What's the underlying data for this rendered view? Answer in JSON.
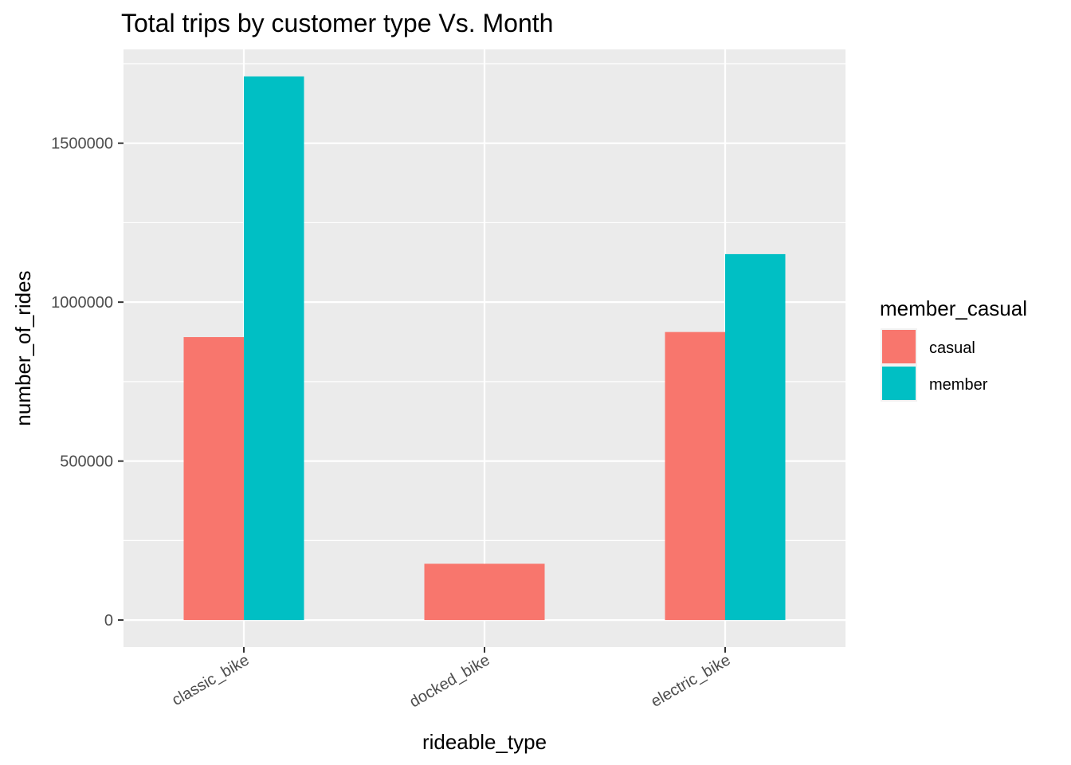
{
  "chart_data": {
    "type": "bar",
    "title": "Total trips by customer type Vs. Month",
    "xlabel": "rideable_type",
    "ylabel": "number_of_rides",
    "categories": [
      "classic_bike",
      "docked_bike",
      "electric_bike"
    ],
    "series": [
      {
        "name": "casual",
        "color": "#F8766D",
        "values": [
          890000,
          177000,
          906000
        ]
      },
      {
        "name": "member",
        "color": "#00BFC4",
        "values": [
          1710000,
          null,
          1151000
        ]
      }
    ],
    "yticks": [
      0,
      500000,
      1000000,
      1500000
    ],
    "ytick_labels": [
      "0",
      "500000",
      "1000000",
      "1500000"
    ],
    "ylim": [
      -85000,
      1795000
    ],
    "legend": {
      "title": "member_casual",
      "position": "right"
    },
    "grid": true,
    "panel_background": "#EBEBEB",
    "grid_color": "#FFFFFF"
  }
}
